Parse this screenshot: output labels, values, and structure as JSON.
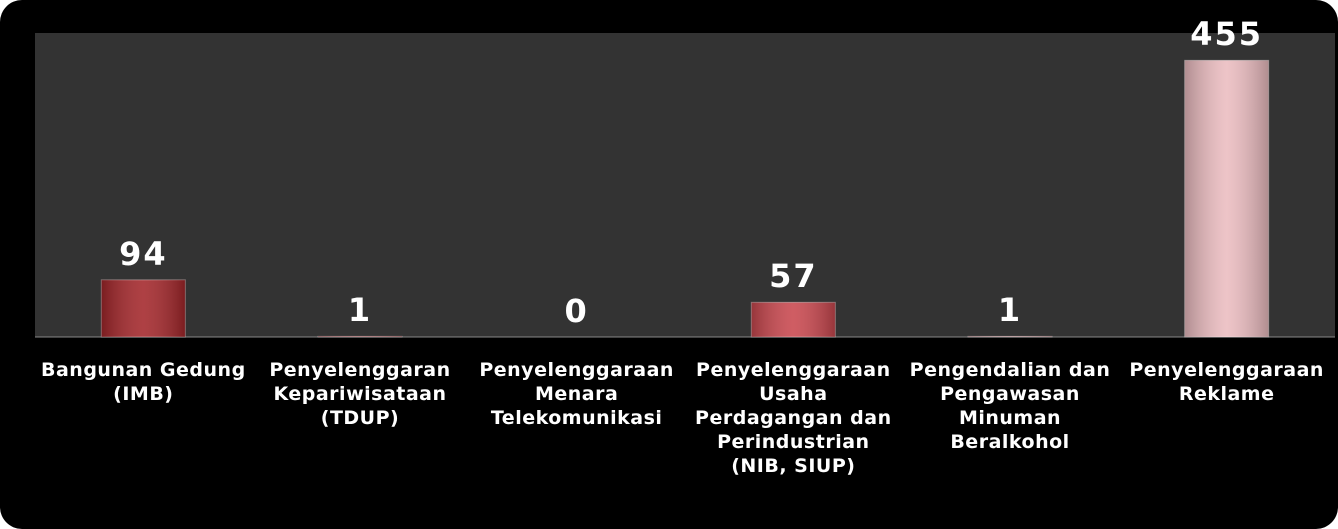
{
  "chart_data": {
    "type": "bar",
    "categories": [
      "Bangunan Gedung (IMB)",
      "Penyelenggaran Kepariwisataan (TDUP)",
      "Penyelenggaraan Menara Telekomunikasi",
      "Penyelenggaraan Usaha Perdagangan dan Perindustrian (NIB, SIUP)",
      "Pengendalian dan Pengawasan Minuman Beralkohol",
      "Penyelenggaraan Reklame"
    ],
    "values": [
      94,
      1,
      0,
      57,
      1,
      455
    ],
    "colors": [
      "#a3262a",
      "#b8363c",
      "#c24a50",
      "#c9474e",
      "#d98a90",
      "#ebbcc0"
    ],
    "ylim": [
      0,
      500
    ]
  }
}
